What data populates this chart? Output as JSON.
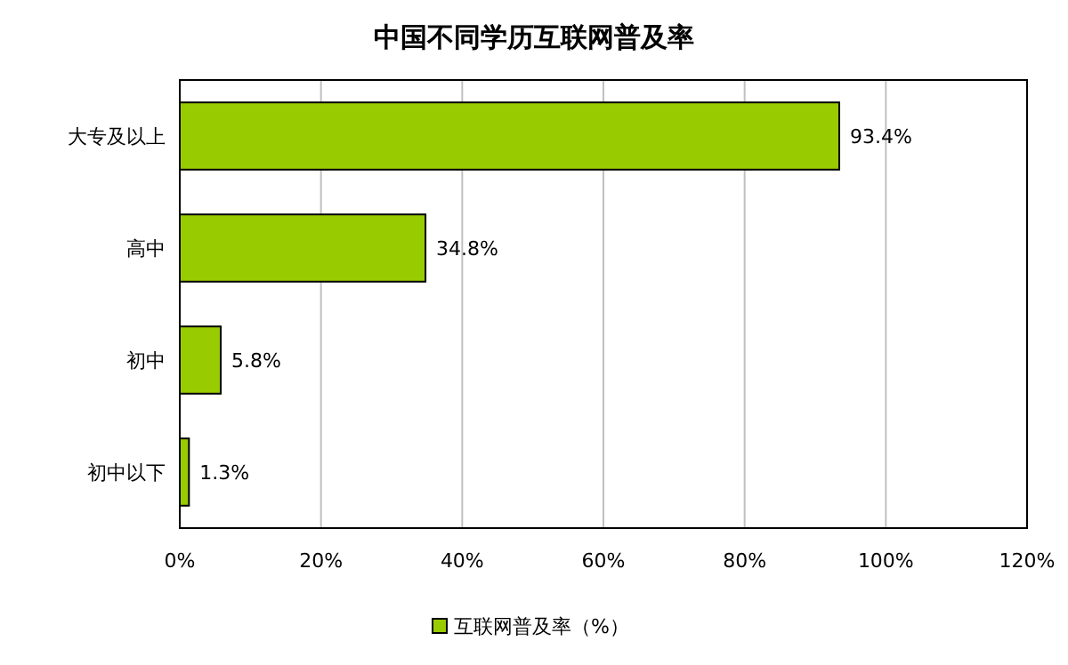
{
  "chart_data": {
    "type": "bar",
    "orientation": "horizontal",
    "title": "中国不同学历互联网普及率",
    "categories": [
      "大专及以上",
      "高中",
      "初中",
      "初中以下"
    ],
    "series": [
      {
        "name": "互联网普及率（%）",
        "color": "#99cc00",
        "values": [
          93.4,
          34.8,
          5.8,
          1.3
        ],
        "value_labels": [
          "93.4%",
          "34.8%",
          "5.8%",
          "1.3%"
        ]
      }
    ],
    "xlim": [
      0,
      120
    ],
    "xticks": [
      {
        "value": 0,
        "label": "0%"
      },
      {
        "value": 20,
        "label": "20%"
      },
      {
        "value": 40,
        "label": "40%"
      },
      {
        "value": 60,
        "label": "60%"
      },
      {
        "value": 80,
        "label": "80%"
      },
      {
        "value": 100,
        "label": "100%"
      },
      {
        "value": 120,
        "label": "120%"
      }
    ],
    "grid": "x",
    "legend": "bottom"
  }
}
